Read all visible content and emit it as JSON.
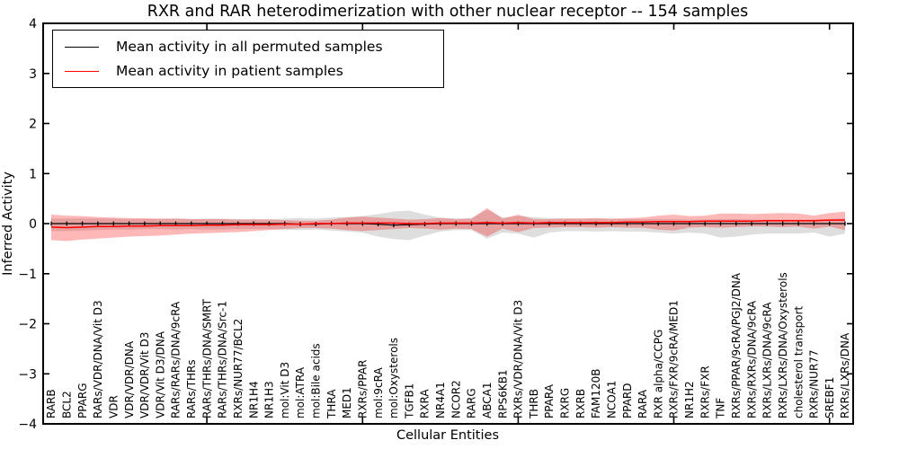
{
  "title": "RXR and RAR heterodimerization with other nuclear receptor -- 154 samples",
  "axes": {
    "xlabel": "Cellular Entities",
    "ylabel": "Inferred Activity"
  },
  "legend": {
    "items": [
      {
        "label": "Mean activity in all permuted samples",
        "color": "#000000"
      },
      {
        "label": "Mean activity in patient samples",
        "color": "#ff0000"
      }
    ]
  },
  "chart_data": {
    "type": "line",
    "title": "RXR and RAR heterodimerization with other nuclear receptor -- 154 samples",
    "xlabel": "Cellular Entities",
    "ylabel": "Inferred Activity",
    "ylim": [
      -4,
      4
    ],
    "yticks": [
      -4,
      -3,
      -2,
      -1,
      0,
      1,
      2,
      3,
      4
    ],
    "xtick_indices": [
      10,
      20,
      30,
      40,
      50
    ],
    "grid": false,
    "legend_position": "upper left",
    "categories": [
      "RARB",
      "BCL2",
      "PPARG",
      "RARs/VDR/DNA/Vit D3",
      "VDR",
      "VDR/VDR/DNA",
      "VDR/VDR/Vit D3",
      "VDR/Vit D3/DNA",
      "RARs/RARs/DNA/9cRA",
      "RARs/THRs",
      "RARs/THRs/DNA/SMRT",
      "RARs/THRs/DNA/Src-1",
      "RXRs/NUR77/BCL2",
      "NR1H4",
      "NR1H3",
      "mol:Vit D3",
      "mol:ATRA",
      "mol:Bile acids",
      "THRA",
      "MED1",
      "RXRs/PPAR",
      "mol:9cRA",
      "mol:Oxysterols",
      "TGFB1",
      "RXRA",
      "NR4A1",
      "NCOR2",
      "RARG",
      "ABCA1",
      "RPS6KB1",
      "RXRs/VDR/DNA/Vit D3",
      "THRB",
      "PPARA",
      "RXRG",
      "RXRB",
      "FAM120B",
      "NCOA1",
      "PPARD",
      "RARA",
      "RXR alpha/CCPG",
      "RXRs/FXR/9cRA/MED1",
      "NR1H2",
      "RXRs/FXR",
      "TNF",
      "RXRs/PPAR/9cRA/PGJ2/DNA",
      "RXRs/RXRs/DNA/9cRA",
      "RXRs/LXRs/DNA/9cRA",
      "RXRs/LXRs/DNA/Oxysterols",
      "cholesterol transport",
      "RXRs/NUR77",
      "SREBF1",
      "RXRs/LXRs/DNA"
    ],
    "series": [
      {
        "name": "Mean activity in all permuted samples",
        "color": "#000000",
        "band_color": "#000000",
        "band_opacity": 0.13,
        "values": [
          0,
          0,
          0,
          0,
          0,
          0,
          0,
          0,
          0,
          0,
          0,
          0,
          0,
          0,
          0,
          0,
          -0.01,
          -0.01,
          0,
          0,
          0,
          -0.01,
          -0.03,
          -0.02,
          -0.01,
          0,
          0,
          0,
          0,
          0,
          0,
          0,
          0,
          0,
          0,
          0,
          0,
          0,
          0,
          0,
          0,
          0,
          0,
          0,
          0,
          0,
          0,
          0,
          0,
          0,
          0,
          0
        ],
        "band_upper": [
          0.1,
          0.1,
          0.1,
          0.1,
          0.1,
          0.09,
          0.09,
          0.09,
          0.1,
          0.09,
          0.1,
          0.1,
          0.09,
          0.09,
          0.09,
          0.1,
          0.11,
          0.1,
          0.12,
          0.13,
          0.15,
          0.19,
          0.24,
          0.26,
          0.18,
          0.12,
          0.1,
          0.11,
          0.28,
          0.12,
          0.15,
          0.13,
          0.11,
          0.1,
          0.1,
          0.1,
          0.09,
          0.09,
          0.09,
          0.09,
          0.09,
          0.08,
          0.08,
          0.09,
          0.09,
          0.08,
          0.08,
          0.08,
          0.08,
          0.08,
          0.09,
          0.11
        ],
        "band_lower": [
          -0.15,
          -0.15,
          -0.14,
          -0.13,
          -0.12,
          -0.12,
          -0.11,
          -0.11,
          -0.12,
          -0.11,
          -0.12,
          -0.12,
          -0.11,
          -0.11,
          -0.11,
          -0.12,
          -0.13,
          -0.12,
          -0.14,
          -0.16,
          -0.18,
          -0.26,
          -0.31,
          -0.33,
          -0.24,
          -0.16,
          -0.13,
          -0.13,
          -0.3,
          -0.18,
          -0.2,
          -0.28,
          -0.18,
          -0.15,
          -0.15,
          -0.16,
          -0.15,
          -0.16,
          -0.16,
          -0.18,
          -0.2,
          -0.18,
          -0.2,
          -0.28,
          -0.26,
          -0.22,
          -0.2,
          -0.2,
          -0.2,
          -0.18,
          -0.26,
          -0.2
        ]
      },
      {
        "name": "Mean activity in patient samples",
        "color": "#ff0000",
        "band_color": "#ff0000",
        "band_opacity": 0.28,
        "values": [
          -0.07,
          -0.08,
          -0.07,
          -0.06,
          -0.06,
          -0.05,
          -0.05,
          -0.04,
          -0.04,
          -0.04,
          -0.03,
          -0.03,
          -0.02,
          -0.02,
          -0.02,
          -0.01,
          -0.01,
          0,
          0,
          0.01,
          0.01,
          0.01,
          0.01,
          0,
          0,
          0.01,
          0.01,
          0.01,
          0.02,
          0.01,
          0.02,
          0.01,
          0.02,
          0.02,
          0.02,
          0.02,
          0.02,
          0.03,
          0.03,
          0.04,
          0.04,
          0.04,
          0.05,
          0.05,
          0.05,
          0.05,
          0.06,
          0.06,
          0.06,
          0.06,
          0.07,
          0.07
        ],
        "band_upper": [
          0.18,
          0.16,
          0.15,
          0.13,
          0.12,
          0.11,
          0.11,
          0.1,
          0.1,
          0.09,
          0.09,
          0.09,
          0.08,
          0.08,
          0.08,
          0.07,
          0.06,
          0.06,
          0.08,
          0.12,
          0.14,
          0.12,
          0.1,
          0.08,
          0.09,
          0.11,
          0.09,
          0.1,
          0.31,
          0.1,
          0.18,
          0.09,
          0.09,
          0.1,
          0.1,
          0.11,
          0.1,
          0.11,
          0.12,
          0.16,
          0.18,
          0.15,
          0.16,
          0.2,
          0.2,
          0.19,
          0.2,
          0.21,
          0.2,
          0.16,
          0.21,
          0.24
        ],
        "band_lower": [
          -0.33,
          -0.35,
          -0.32,
          -0.3,
          -0.28,
          -0.26,
          -0.25,
          -0.24,
          -0.22,
          -0.2,
          -0.19,
          -0.18,
          -0.17,
          -0.15,
          -0.13,
          -0.11,
          -0.09,
          -0.09,
          -0.1,
          -0.13,
          -0.15,
          -0.13,
          -0.11,
          -0.09,
          -0.1,
          -0.12,
          -0.1,
          -0.11,
          -0.26,
          -0.1,
          -0.17,
          -0.09,
          -0.08,
          -0.07,
          -0.07,
          -0.08,
          -0.07,
          -0.08,
          -0.08,
          -0.12,
          -0.14,
          -0.08,
          -0.07,
          -0.08,
          -0.07,
          -0.06,
          -0.06,
          -0.07,
          -0.06,
          -0.1,
          -0.06,
          -0.13
        ]
      }
    ]
  }
}
